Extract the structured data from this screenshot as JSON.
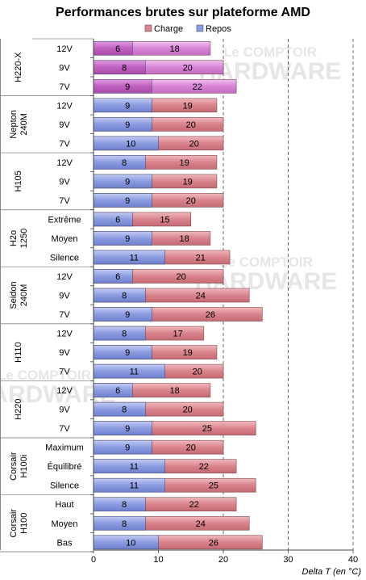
{
  "chart_data": {
    "type": "bar",
    "title": "Performances brutes sur plateforme AMD",
    "xlabel": "Delta T (en °C)",
    "xlim": [
      0,
      40
    ],
    "xticks": [
      0,
      10,
      20,
      30,
      40
    ],
    "grid": "vertical dashed at 20, 30, 40",
    "legend": {
      "placement": "top",
      "entries": [
        {
          "name": "Charge",
          "color": "#d9838c"
        },
        {
          "name": "Repos",
          "color": "#8b9be0"
        }
      ]
    },
    "watermark": [
      "Le COMPTOIR",
      "HARDWARE"
    ],
    "groups": [
      {
        "name": "H220-X",
        "highlight": true,
        "rows": [
          {
            "label": "12V",
            "repos": 6,
            "charge": 18
          },
          {
            "label": "9V",
            "repos": 8,
            "charge": 20
          },
          {
            "label": "7V",
            "repos": 9,
            "charge": 22
          }
        ]
      },
      {
        "name": "Nepton 240M",
        "rows": [
          {
            "label": "12V",
            "repos": 9,
            "charge": 19
          },
          {
            "label": "9V",
            "repos": 9,
            "charge": 20
          },
          {
            "label": "7V",
            "repos": 10,
            "charge": 20
          }
        ]
      },
      {
        "name": "H105",
        "rows": [
          {
            "label": "12V",
            "repos": 8,
            "charge": 19
          },
          {
            "label": "9V",
            "repos": 9,
            "charge": 19
          },
          {
            "label": "7V",
            "repos": 9,
            "charge": 20
          }
        ]
      },
      {
        "name": "H2o 1250",
        "rows": [
          {
            "label": "Extrême",
            "repos": 6,
            "charge": 15
          },
          {
            "label": "Moyen",
            "repos": 9,
            "charge": 18
          },
          {
            "label": "Silence",
            "repos": 11,
            "charge": 21
          }
        ]
      },
      {
        "name": "Seidon 240M",
        "rows": [
          {
            "label": "12V",
            "repos": 6,
            "charge": 20
          },
          {
            "label": "9V",
            "repos": 8,
            "charge": 24
          },
          {
            "label": "7V",
            "repos": 9,
            "charge": 26
          }
        ]
      },
      {
        "name": "H110",
        "rows": [
          {
            "label": "12V",
            "repos": 8,
            "charge": 17
          },
          {
            "label": "9V",
            "repos": 9,
            "charge": 19
          },
          {
            "label": "7V",
            "repos": 11,
            "charge": 20
          }
        ]
      },
      {
        "name": "H220",
        "rows": [
          {
            "label": "12V",
            "repos": 6,
            "charge": 18
          },
          {
            "label": "9V",
            "repos": 8,
            "charge": 20
          },
          {
            "label": "7V",
            "repos": 9,
            "charge": 25
          }
        ]
      },
      {
        "name": "Corsair H100i",
        "rows": [
          {
            "label": "Maximum",
            "repos": 9,
            "charge": 20
          },
          {
            "label": "Équilibré",
            "repos": 11,
            "charge": 22
          },
          {
            "label": "Silence",
            "repos": 11,
            "charge": 25
          }
        ]
      },
      {
        "name": "Corsair H100",
        "rows": [
          {
            "label": "Haut",
            "repos": 8,
            "charge": 22
          },
          {
            "label": "Moyen",
            "repos": 8,
            "charge": 24
          },
          {
            "label": "Bas",
            "repos": 10,
            "charge": 26
          }
        ]
      }
    ],
    "colors": {
      "charge": "#d9838c",
      "repos": "#8b9be0",
      "highlight_charge": "#d883d6",
      "highlight_repos": "#bf5fbf"
    }
  }
}
